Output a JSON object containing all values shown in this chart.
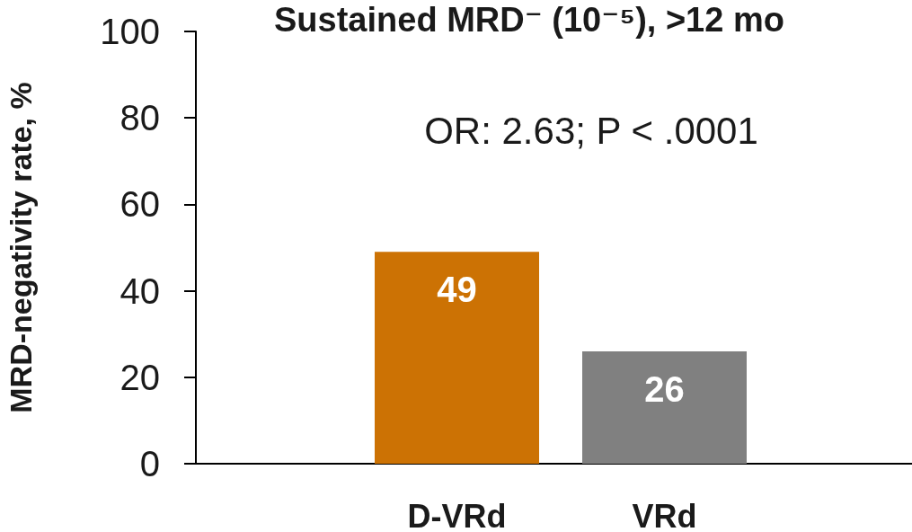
{
  "chart_data": {
    "type": "bar",
    "title": "Sustained MRD⁻ (10⁻⁵), >12 mo",
    "ylabel": "MRD-negativity rate, %",
    "annotations": [
      "OR: 2.63; P < .0001"
    ],
    "categories": [
      "D-VRd",
      "VRd"
    ],
    "values": [
      49,
      26
    ],
    "colors": [
      "#cc7204",
      "#808080"
    ],
    "ylim": [
      0,
      100
    ],
    "yticks": [
      0,
      20,
      40,
      60,
      80,
      100
    ],
    "data_labels": true
  }
}
